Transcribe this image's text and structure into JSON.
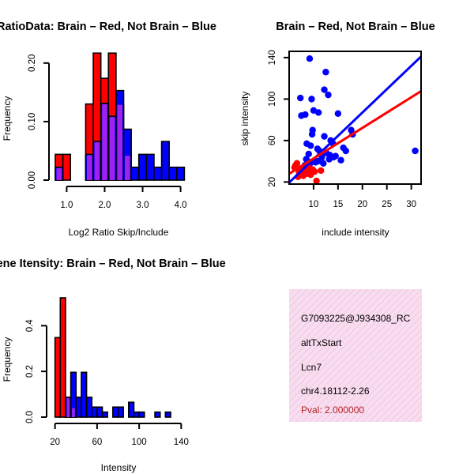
{
  "colors": {
    "brain": "#ff0000",
    "not_brain": "#0000ff",
    "overlap": "#a020f0",
    "axis": "#000000",
    "info_bg": "#f8dcef",
    "pval": "#b22222"
  },
  "chart_data": [
    {
      "id": "ratio-hist",
      "type": "bar",
      "title": "RatioData: Brain – Red, Not Brain – Blue",
      "xlabel": "Log2 Ratio Skip/Include",
      "ylabel": "Frequency",
      "xlim": [
        0.7,
        4.05
      ],
      "ylim": [
        0,
        0.22
      ],
      "xticks": [
        1.0,
        2.0,
        3.0,
        4.0
      ],
      "xtick_labels": [
        "1.0",
        "2.0",
        "3.0",
        "4.0"
      ],
      "yticks": [
        0.0,
        0.1,
        0.2
      ],
      "ytick_labels": [
        "0.00",
        "0.10",
        "0.20"
      ],
      "bin_width": 0.2,
      "series": [
        {
          "name": "Brain",
          "bin_starts": [
            0.7,
            0.9,
            1.1,
            1.3,
            1.5,
            1.7,
            1.9,
            2.1,
            2.3,
            2.5,
            2.7,
            2.9,
            3.1,
            3.3,
            3.5,
            3.7,
            3.9
          ],
          "values": [
            0.044,
            0.044,
            0.0,
            0.0,
            0.13,
            0.217,
            0.174,
            0.217,
            0.13,
            0.043,
            0.0,
            0.0,
            0.0,
            0.0,
            0.0,
            0.0,
            0.0
          ]
        },
        {
          "name": "Not Brain",
          "bin_starts": [
            0.7,
            0.9,
            1.1,
            1.3,
            1.5,
            1.7,
            1.9,
            2.1,
            2.3,
            2.5,
            2.7,
            2.9,
            3.1,
            3.3,
            3.5,
            3.7,
            3.9
          ],
          "values": [
            0.022,
            0.0,
            0.0,
            0.0,
            0.044,
            0.066,
            0.131,
            0.109,
            0.153,
            0.087,
            0.022,
            0.044,
            0.044,
            0.022,
            0.066,
            0.022,
            0.022
          ]
        }
      ]
    },
    {
      "id": "scatter",
      "type": "scatter",
      "title": "Brain – Red, Not Brain – Blue",
      "xlabel": "include intensity",
      "ylabel": "skip intensity",
      "xlim": [
        5,
        32
      ],
      "ylim": [
        18,
        146
      ],
      "xticks": [
        10,
        15,
        20,
        25,
        30
      ],
      "yticks": [
        20,
        60,
        100,
        140
      ],
      "series": [
        {
          "name": "Brain",
          "points": [
            [
              6.1,
              34
            ],
            [
              6.3,
              36
            ],
            [
              6.6,
              38
            ],
            [
              7.0,
              30
            ],
            [
              7.3,
              28
            ],
            [
              7.6,
              32
            ],
            [
              7.9,
              26
            ],
            [
              8.2,
              30
            ],
            [
              8.5,
              28
            ],
            [
              9.0,
              31
            ],
            [
              9.4,
              27
            ],
            [
              9.8,
              32
            ],
            [
              10.2,
              30
            ],
            [
              10.6,
              21
            ],
            [
              11.5,
              31
            ],
            [
              6.8,
              25
            ],
            [
              7.4,
              33
            ],
            [
              8.8,
              35
            ]
          ],
          "fit": {
            "slope": 2.95,
            "intercept": 13.2
          }
        },
        {
          "name": "Not Brain",
          "points": [
            [
              9.2,
              139
            ],
            [
              7.3,
              101
            ],
            [
              9.6,
              100
            ],
            [
              12.5,
              126
            ],
            [
              12.2,
              109
            ],
            [
              13.0,
              104
            ],
            [
              10.0,
              89
            ],
            [
              11.0,
              87
            ],
            [
              15.0,
              86
            ],
            [
              8.3,
              85
            ],
            [
              7.5,
              84
            ],
            [
              9.8,
              70
            ],
            [
              9.7,
              66
            ],
            [
              12.2,
              64
            ],
            [
              13.5,
              60
            ],
            [
              14.0,
              57
            ],
            [
              8.6,
              57
            ],
            [
              9.4,
              55
            ],
            [
              10.8,
              52
            ],
            [
              11.2,
              50
            ],
            [
              12.6,
              48
            ],
            [
              13.3,
              46
            ],
            [
              14.1,
              44
            ],
            [
              15.6,
              41
            ],
            [
              16.1,
              53
            ],
            [
              16.6,
              50
            ],
            [
              17.7,
              70
            ],
            [
              18.0,
              66
            ],
            [
              8.8,
              40
            ],
            [
              9.3,
              38
            ],
            [
              8.2,
              36
            ],
            [
              10.4,
              39
            ],
            [
              10.9,
              40
            ],
            [
              12.0,
              38
            ],
            [
              13.2,
              42
            ],
            [
              14.5,
              45
            ],
            [
              30.8,
              50
            ],
            [
              9.0,
              47
            ],
            [
              11.7,
              44
            ],
            [
              8.5,
              42
            ]
          ],
          "fit": {
            "slope": 4.5,
            "intercept": -3.0
          }
        }
      ]
    },
    {
      "id": "intensity-hist",
      "type": "bar",
      "title": "Gene Itensity: Brain – Red, Not Brain – Blue",
      "xlabel": "Intensity",
      "ylabel": "Frequency",
      "xlim": [
        18,
        142
      ],
      "ylim": [
        0,
        0.56
      ],
      "xticks": [
        20,
        60,
        100,
        140
      ],
      "xtick_labels": [
        "20",
        "60",
        "100",
        "140"
      ],
      "yticks": [
        0.0,
        0.2,
        0.4
      ],
      "ytick_labels": [
        "0.0",
        "0.2",
        "0.4"
      ],
      "bin_width": 5,
      "series": [
        {
          "name": "Brain",
          "bin_starts": [
            20,
            25,
            30,
            35,
            40,
            45,
            50,
            55,
            60,
            65,
            70,
            75,
            80,
            85,
            90,
            95,
            100,
            105,
            110,
            115,
            120,
            125,
            130,
            135
          ],
          "values": [
            0.348,
            0.522,
            0.087,
            0.043,
            0.0,
            0.0,
            0.0,
            0.0,
            0.0,
            0.0,
            0.0,
            0.0,
            0.0,
            0.0,
            0.0,
            0.0,
            0.0,
            0.0,
            0.0,
            0.0,
            0.0,
            0.0,
            0.0,
            0.0
          ]
        },
        {
          "name": "Not Brain",
          "bin_starts": [
            20,
            25,
            30,
            35,
            40,
            45,
            50,
            55,
            60,
            65,
            70,
            75,
            80,
            85,
            90,
            95,
            100,
            105,
            110,
            115,
            120,
            125,
            130,
            135
          ],
          "values": [
            0.0,
            0.0,
            0.087,
            0.196,
            0.087,
            0.196,
            0.087,
            0.044,
            0.044,
            0.022,
            0.0,
            0.044,
            0.044,
            0.0,
            0.065,
            0.022,
            0.022,
            0.0,
            0.0,
            0.022,
            0.0,
            0.022,
            0.0,
            0.0
          ]
        }
      ]
    }
  ],
  "info": {
    "lines": [
      "G7093225@J934308_RC",
      "altTxStart",
      "Lcn7",
      "chr4.18112-2.26"
    ],
    "pval": "Pval: 2.000000"
  }
}
